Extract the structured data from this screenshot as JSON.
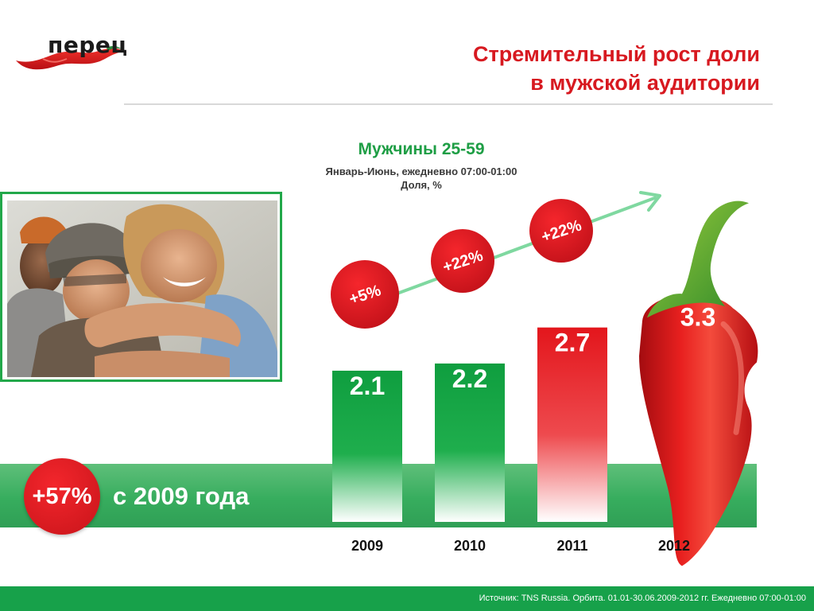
{
  "brand": {
    "logo_text": "перец",
    "colors": {
      "red": "#d71920",
      "green": "#22a84a",
      "dark_green": "#17a14a"
    }
  },
  "header": {
    "title_line1": "Стремительный рост доли",
    "title_line2": "в мужской аудитории"
  },
  "photo": {
    "icon": "group-of-young-people-photo"
  },
  "band": {
    "badge": "+57%",
    "text": "с 2009 года"
  },
  "footer": {
    "source": "Источник: TNS Russia. Орбита. 01.01-30.06.2009-2012 гг. Ежедневно 07:00-01:00"
  },
  "chart_data": {
    "type": "bar",
    "title": "Мужчины 25-59",
    "subtitle": "Январь-Июнь, ежедневно 07:00-01:00",
    "unit_label": "Доля, %",
    "categories": [
      "2009",
      "2010",
      "2011",
      "2012"
    ],
    "values": [
      2.1,
      2.2,
      2.7,
      3.3
    ],
    "value_labels": [
      "2.1",
      "2.2",
      "2.7",
      "3.3"
    ],
    "bar_colors": [
      "#1fa84a",
      "#1fa84a",
      "#e0252b",
      "#d3151b"
    ],
    "growth_labels": [
      "+5%",
      "+22%",
      "+22%"
    ],
    "last_bar_style": "chili-pepper",
    "ylim": [
      0,
      3.5
    ],
    "grid": false,
    "legend": "none"
  }
}
